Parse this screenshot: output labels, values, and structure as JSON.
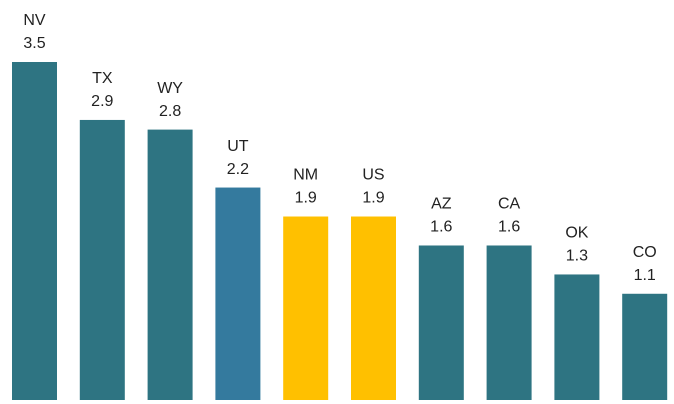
{
  "chart_data": {
    "type": "bar",
    "categories": [
      "NV",
      "TX",
      "WY",
      "UT",
      "NM",
      "US",
      "AZ",
      "CA",
      "OK",
      "CO"
    ],
    "values": [
      3.5,
      2.9,
      2.8,
      2.2,
      1.9,
      1.9,
      1.6,
      1.6,
      1.3,
      1.1
    ],
    "colors": [
      "#2e7482",
      "#2e7482",
      "#2e7482",
      "#347a9e",
      "#ffc000",
      "#ffc000",
      "#2e7482",
      "#2e7482",
      "#2e7482",
      "#2e7482"
    ]
  }
}
